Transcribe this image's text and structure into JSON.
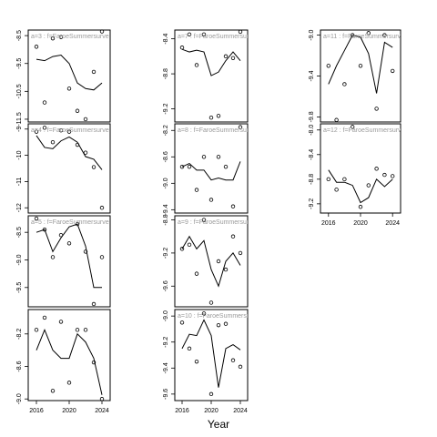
{
  "figure": {
    "xlabel": "Year"
  },
  "chart_data": [
    {
      "type": "scatter",
      "id": "a3",
      "label": "a=3 : f=FaroeSummersurve",
      "xlim": [
        2015,
        2025
      ],
      "ylim": [
        -11.6,
        -8.3
      ],
      "yticks": [
        -8.5,
        -9.5,
        -10.5,
        -11.5
      ],
      "ytick_labels": [
        "-8.5",
        "-9.5",
        "-10.5",
        "-11.5"
      ],
      "xticks": [],
      "xtick_labels": [],
      "points": {
        "x": [
          2016,
          2017,
          2018,
          2019,
          2020,
          2021,
          2022,
          2023,
          2024
        ],
        "y": [
          -8.9,
          -10.9,
          -8.6,
          -8.55,
          -10.4,
          -11.2,
          -11.5,
          -9.8,
          -8.35
        ]
      },
      "fit": {
        "x": [
          2016,
          2017,
          2018,
          2019,
          2020,
          2021,
          2022,
          2023,
          2024
        ],
        "y": [
          -9.35,
          -9.4,
          -9.25,
          -9.2,
          -9.5,
          -10.2,
          -10.4,
          -10.45,
          -10.2
        ]
      }
    },
    {
      "type": "scatter",
      "id": "a4",
      "label": "a=4 : f=FaroeSummersurve",
      "xlim": [
        2015,
        2025
      ],
      "ylim": [
        -12.2,
        -8.8
      ],
      "yticks": [
        -9,
        -10,
        -11,
        -12
      ],
      "ytick_labels": [
        "-9",
        "-10",
        "-11",
        "-12"
      ],
      "xticks": [],
      "xtick_labels": [],
      "points": {
        "x": [
          2016,
          2017,
          2018,
          2019,
          2020,
          2021,
          2022,
          2023,
          2024
        ],
        "y": [
          -9.1,
          -8.95,
          -9.5,
          -9.05,
          -9.1,
          -9.6,
          -9.9,
          -10.45,
          -12.0
        ]
      },
      "fit": {
        "x": [
          2016,
          2017,
          2018,
          2019,
          2020,
          2021,
          2022,
          2023,
          2024
        ],
        "y": [
          -9.25,
          -9.7,
          -9.75,
          -9.45,
          -9.3,
          -9.5,
          -10.05,
          -10.15,
          -10.55
        ]
      }
    },
    {
      "type": "scatter",
      "id": "a5",
      "label": "a=5 : f=FaroeSummersurve",
      "xlim": [
        2015,
        2025
      ],
      "ylim": [
        -9.85,
        -8.2
      ],
      "yticks": [
        -8.5,
        -9.0,
        -9.5
      ],
      "ytick_labels": [
        "-8.5",
        "-9.0",
        "-9.5"
      ],
      "xticks": [],
      "xtick_labels": [],
      "points": {
        "x": [
          2016,
          2017,
          2018,
          2019,
          2020,
          2021,
          2022,
          2023,
          2024
        ],
        "y": [
          -8.25,
          -8.45,
          -8.95,
          -8.55,
          -8.7,
          -8.35,
          -8.85,
          -9.8,
          -8.95
        ]
      },
      "fit": {
        "x": [
          2016,
          2017,
          2018,
          2019,
          2020,
          2021,
          2022,
          2023,
          2024
        ],
        "y": [
          -8.5,
          -8.45,
          -8.85,
          -8.6,
          -8.4,
          -8.35,
          -8.75,
          -9.5,
          -9.5
        ]
      }
    },
    {
      "type": "scatter",
      "id": "a6",
      "label": "",
      "xlim": [
        2015,
        2025
      ],
      "ylim": [
        -9.02,
        -7.9
      ],
      "yticks": [
        -8.2,
        -8.6,
        -9.0
      ],
      "ytick_labels": [
        "-8.2",
        "-8.6",
        "-9.0"
      ],
      "xticks": [
        2016,
        2020,
        2024
      ],
      "xtick_labels": [
        "2016",
        "2020",
        "2024"
      ],
      "points": {
        "x": [
          2016,
          2017,
          2018,
          2019,
          2020,
          2021,
          2022,
          2023,
          2024
        ],
        "y": [
          -8.15,
          -8.0,
          -8.9,
          -8.05,
          -8.8,
          -8.15,
          -8.15,
          -8.55,
          -9.0
        ]
      },
      "fit": {
        "x": [
          2016,
          2017,
          2018,
          2019,
          2020,
          2021,
          2022,
          2023,
          2024
        ],
        "y": [
          -8.4,
          -8.15,
          -8.4,
          -8.5,
          -8.5,
          -8.2,
          -8.3,
          -8.5,
          -8.95
        ]
      }
    },
    {
      "type": "scatter",
      "id": "a7",
      "label": "a=7 : f=FaroeSummersurve",
      "xlim": [
        2015,
        2025
      ],
      "ylim": [
        -9.35,
        -8.3
      ],
      "yticks": [
        -8.4,
        -8.8,
        -9.2
      ],
      "ytick_labels": [
        "-8.4",
        "-8.8",
        "-9.2"
      ],
      "xticks": [],
      "xtick_labels": [],
      "points": {
        "x": [
          2016,
          2017,
          2018,
          2019,
          2020,
          2021,
          2022,
          2023,
          2024
        ],
        "y": [
          -8.5,
          -8.35,
          -8.7,
          -8.35,
          -9.3,
          -9.28,
          -8.6,
          -8.62,
          -8.32
        ]
      },
      "fit": {
        "x": [
          2016,
          2017,
          2018,
          2019,
          2020,
          2021,
          2022,
          2023,
          2024
        ],
        "y": [
          -8.52,
          -8.55,
          -8.53,
          -8.55,
          -8.82,
          -8.78,
          -8.65,
          -8.55,
          -8.65
        ]
      }
    },
    {
      "type": "scatter",
      "id": "a8",
      "label": "a=8 : f=FaroeSummersurve",
      "xlim": [
        2015,
        2025
      ],
      "ylim": [
        -9.45,
        -8.1
      ],
      "yticks": [
        -8.2,
        -8.6,
        -9.0,
        -9.4
      ],
      "ytick_labels": [
        "-8.2",
        "-8.6",
        "-9.0",
        "-9.4"
      ],
      "xticks": [],
      "xtick_labels": [],
      "points": {
        "x": [
          2016,
          2017,
          2018,
          2019,
          2020,
          2021,
          2022,
          2023,
          2024
        ],
        "y": [
          -8.75,
          -8.75,
          -9.1,
          -8.6,
          -9.25,
          -8.6,
          -8.75,
          -9.35,
          -8.15
        ]
      },
      "fit": {
        "x": [
          2016,
          2017,
          2018,
          2019,
          2020,
          2021,
          2022,
          2023,
          2024
        ],
        "y": [
          -8.75,
          -8.7,
          -8.8,
          -8.8,
          -8.95,
          -8.92,
          -8.95,
          -8.95,
          -8.67
        ]
      }
    },
    {
      "type": "scatter",
      "id": "a9",
      "label": "a=9 : f=FaroeSummersurve",
      "xlim": [
        2015,
        2025
      ],
      "ylim": [
        -9.85,
        -8.75
      ],
      "yticks": [
        -8.8,
        -9.2,
        -9.6
      ],
      "ytick_labels": [
        "-8.8",
        "-9.2",
        "-9.6"
      ],
      "xticks": [],
      "xtick_labels": [],
      "points": {
        "x": [
          2016,
          2017,
          2018,
          2019,
          2020,
          2021,
          2022,
          2023,
          2024
        ],
        "y": [
          -9.15,
          -9.1,
          -9.45,
          -8.8,
          -9.8,
          -9.3,
          -9.4,
          -9.0,
          -9.2
        ]
      },
      "fit": {
        "x": [
          2016,
          2017,
          2018,
          2019,
          2020,
          2021,
          2022,
          2023,
          2024
        ],
        "y": [
          -9.15,
          -9.0,
          -9.15,
          -9.05,
          -9.4,
          -9.6,
          -9.3,
          -9.2,
          -9.35
        ]
      }
    },
    {
      "type": "scatter",
      "id": "a10",
      "label": "a=10 : f=FaroeSummersurve",
      "xlim": [
        2015,
        2025
      ],
      "ylim": [
        -9.65,
        -8.95
      ],
      "yticks": [
        -9.0,
        -9.2,
        -9.4,
        -9.6
      ],
      "ytick_labels": [
        "-9.0",
        "-9.2",
        "-9.4",
        "-9.6"
      ],
      "xticks": [
        2016,
        2020,
        2024
      ],
      "xtick_labels": [
        "2016",
        "2020",
        "2024"
      ],
      "points": {
        "x": [
          2016,
          2017,
          2018,
          2019,
          2020,
          2021,
          2022,
          2023,
          2024
        ],
        "y": [
          -9.05,
          -9.25,
          -9.35,
          -8.98,
          -9.6,
          -9.07,
          -9.06,
          -9.34,
          -9.39
        ]
      },
      "fit": {
        "x": [
          2016,
          2017,
          2018,
          2019,
          2020,
          2021,
          2022,
          2023,
          2024
        ],
        "y": [
          -9.25,
          -9.14,
          -9.15,
          -9.03,
          -9.15,
          -9.55,
          -9.25,
          -9.22,
          -9.26
        ]
      }
    },
    {
      "type": "scatter",
      "id": "a11",
      "label": "a=11 : f=FaroeSummersurve",
      "xlim": [
        2015,
        2025
      ],
      "ylim": [
        -9.85,
        -8.95
      ],
      "yticks": [
        -9.0,
        -9.4,
        -9.8
      ],
      "ytick_labels": [
        "-9.0",
        "-9.4",
        "-9.8"
      ],
      "xticks": [],
      "xtick_labels": [],
      "points": {
        "x": [
          2016,
          2017,
          2018,
          2019,
          2020,
          2021,
          2022,
          2023,
          2024
        ],
        "y": [
          -9.3,
          -9.83,
          -9.48,
          -9.0,
          -9.3,
          -8.98,
          -9.72,
          -9.0,
          -9.35
        ]
      },
      "fit": {
        "x": [
          2016,
          2017,
          2018,
          2019,
          2020,
          2021,
          2022,
          2023,
          2024
        ],
        "y": [
          -9.48,
          -9.3,
          -9.15,
          -9.0,
          -9.02,
          -9.18,
          -9.57,
          -9.07,
          -9.12
        ]
      }
    },
    {
      "type": "scatter",
      "id": "a12",
      "label": "a=12 : f=FaroeSummersurve",
      "xlim": [
        2015,
        2025
      ],
      "ylim": [
        -9.35,
        -7.9
      ],
      "yticks": [
        -8.0,
        -8.4,
        -8.8,
        -9.2
      ],
      "ytick_labels": [
        "-8.0",
        "-8.4",
        "-8.8",
        "-9.2"
      ],
      "xticks": [
        2016,
        2020,
        2024
      ],
      "xtick_labels": [
        "2016",
        "2020",
        "2024"
      ],
      "points": {
        "x": [
          2016,
          2017,
          2018,
          2019,
          2020,
          2021,
          2022,
          2023,
          2024
        ],
        "y": [
          -8.8,
          -8.97,
          -8.8,
          -7.95,
          -9.25,
          -8.9,
          -8.63,
          -8.73,
          -8.75
        ]
      },
      "fit": {
        "x": [
          2016,
          2017,
          2018,
          2019,
          2020,
          2021,
          2022,
          2023,
          2024
        ],
        "y": [
          -8.65,
          -8.85,
          -8.85,
          -8.9,
          -9.18,
          -9.1,
          -8.8,
          -8.92,
          -8.8
        ]
      }
    }
  ]
}
